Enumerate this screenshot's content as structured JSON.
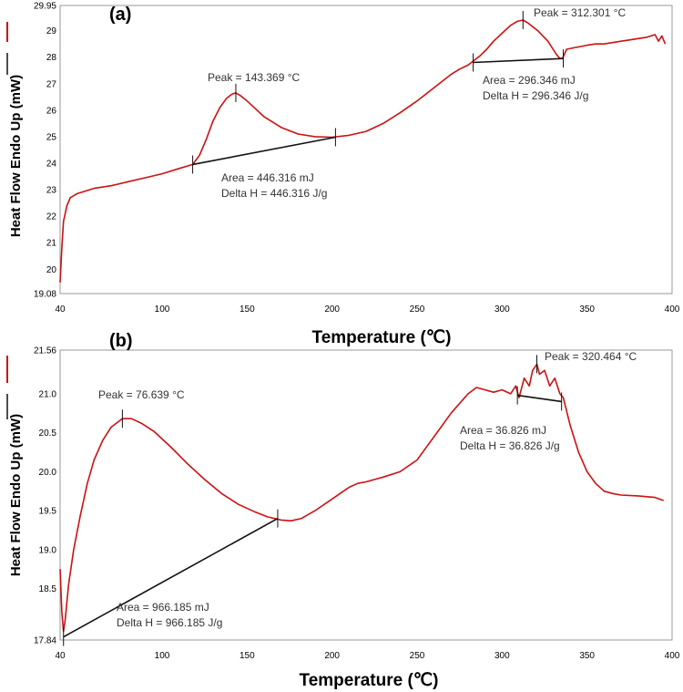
{
  "chart_data": [
    {
      "panel": "(a)",
      "type": "line",
      "xlabel": "Temperature (℃)",
      "ylabel": "Heat Flow Endo Up (mW)",
      "xlim": [
        40,
        400
      ],
      "ylim": [
        19.08,
        29.95
      ],
      "xticks": [
        "40",
        "100",
        "150",
        "200",
        "250",
        "300",
        "350",
        "400"
      ],
      "yticks": [
        "19.08",
        "20",
        "21",
        "22",
        "23",
        "24",
        "25",
        "26",
        "27",
        "28",
        "29",
        "29.95"
      ],
      "xtick_values": [
        40,
        100,
        150,
        200,
        250,
        300,
        350,
        400
      ],
      "ytick_values": [
        19.08,
        20,
        21,
        22,
        23,
        24,
        25,
        26,
        27,
        28,
        29,
        29.95
      ],
      "series": [
        {
          "name": "heat flow",
          "x": [
            40,
            41,
            42,
            44,
            46,
            50,
            55,
            60,
            70,
            80,
            90,
            100,
            110,
            118,
            122,
            126,
            130,
            134,
            138,
            141,
            143.4,
            146,
            150,
            155,
            160,
            170,
            180,
            190,
            200,
            210,
            220,
            230,
            240,
            250,
            260,
            265,
            270,
            275,
            280,
            283,
            287,
            291,
            295,
            300,
            305,
            309,
            312.3,
            315,
            318,
            321,
            324,
            327,
            330,
            332,
            334,
            335.5,
            338,
            342,
            346,
            350,
            355,
            360,
            365,
            370,
            375,
            380,
            385,
            390,
            392,
            394,
            396
          ],
          "y": [
            19.5,
            20.8,
            21.8,
            22.4,
            22.7,
            22.85,
            22.95,
            23.05,
            23.15,
            23.3,
            23.45,
            23.6,
            23.8,
            23.95,
            24.3,
            24.9,
            25.6,
            26.1,
            26.45,
            26.6,
            26.65,
            26.55,
            26.35,
            26.05,
            25.75,
            25.35,
            25.1,
            25.0,
            24.98,
            25.05,
            25.2,
            25.5,
            25.9,
            26.35,
            26.85,
            27.1,
            27.35,
            27.55,
            27.7,
            27.85,
            28.05,
            28.3,
            28.6,
            28.9,
            29.2,
            29.35,
            29.4,
            29.3,
            29.15,
            29.0,
            28.8,
            28.6,
            28.3,
            28.1,
            27.95,
            27.95,
            28.3,
            28.35,
            28.4,
            28.45,
            28.5,
            28.5,
            28.55,
            28.6,
            28.65,
            28.7,
            28.75,
            28.85,
            28.6,
            28.8,
            28.5
          ]
        }
      ],
      "annotations": [
        {
          "label": "Peak = 143.369 °C",
          "x": 143.369,
          "y": 26.65
        },
        {
          "label": "Peak = 312.301 °C",
          "x": 312.301,
          "y": 29.4
        },
        {
          "area": "Area = 446.316 mJ",
          "delta": "Delta H = 446.316 J/g",
          "x1": 118,
          "y1": 23.95,
          "x2": 202,
          "y2": 24.98
        },
        {
          "area": "Area = 296.346 mJ",
          "delta": "Delta H = 296.346 J/g",
          "x1": 283,
          "y1": 27.8,
          "x2": 336,
          "y2": 27.95
        }
      ]
    },
    {
      "panel": "(b)",
      "type": "line",
      "xlabel": "Temperature (℃)",
      "ylabel": "Heat Flow Endo Up (mW)",
      "xlim": [
        40,
        400
      ],
      "ylim": [
        17.84,
        21.56
      ],
      "xticks": [
        "40",
        "100",
        "150",
        "200",
        "250",
        "300",
        "350",
        "400"
      ],
      "yticks": [
        "17.84",
        "18.5",
        "19.0",
        "19.5",
        "20.0",
        "20.5",
        "21.0",
        "21.56"
      ],
      "xtick_values": [
        40,
        100,
        150,
        200,
        250,
        300,
        350,
        400
      ],
      "ytick_values": [
        17.84,
        18.5,
        19.0,
        19.5,
        20.0,
        20.5,
        21.0,
        21.56
      ],
      "series": [
        {
          "name": "heat flow",
          "x": [
            40,
            41,
            42,
            43,
            45,
            48,
            52,
            56,
            60,
            65,
            70,
            76.6,
            82,
            88,
            95,
            105,
            115,
            125,
            135,
            145,
            155,
            162,
            170,
            176,
            182,
            190,
            200,
            210,
            215,
            220,
            225,
            230,
            240,
            250,
            255,
            260,
            270,
            280,
            285,
            290,
            295,
            300,
            305,
            308,
            310,
            313,
            316,
            318,
            320.5,
            322,
            325,
            328,
            331,
            334,
            336,
            340,
            345,
            350,
            355,
            360,
            365,
            370,
            380,
            390,
            395
          ],
          "y": [
            18.75,
            18.2,
            17.95,
            18.1,
            18.55,
            19.0,
            19.45,
            19.85,
            20.15,
            20.4,
            20.57,
            20.68,
            20.68,
            20.62,
            20.52,
            20.32,
            20.1,
            19.9,
            19.72,
            19.58,
            19.48,
            19.42,
            19.38,
            19.37,
            19.4,
            19.5,
            19.65,
            19.8,
            19.85,
            19.87,
            19.9,
            19.93,
            20.0,
            20.15,
            20.3,
            20.45,
            20.75,
            21.0,
            21.08,
            21.05,
            21.02,
            21.05,
            21.0,
            21.1,
            20.95,
            21.2,
            21.1,
            21.3,
            21.38,
            21.25,
            21.3,
            21.1,
            21.2,
            21.0,
            20.95,
            20.6,
            20.25,
            20.0,
            19.85,
            19.75,
            19.72,
            19.7,
            19.69,
            19.67,
            19.63
          ]
        }
      ],
      "annotations": [
        {
          "label": "Peak = 76.639 °C",
          "x": 76.639,
          "y": 20.68
        },
        {
          "label": "Peak = 320.464 °C",
          "x": 320.464,
          "y": 21.38
        },
        {
          "area": "Area = 966.185 mJ",
          "delta": "Delta H = 966.185 J/g",
          "x1": 42,
          "y1": 17.88,
          "x2": 168,
          "y2": 19.4
        },
        {
          "area": "Area = 36.826 mJ",
          "delta": "Delta H = 36.826 J/g",
          "x1": 309,
          "y1": 20.98,
          "x2": 335,
          "y2": 20.9
        }
      ]
    }
  ]
}
